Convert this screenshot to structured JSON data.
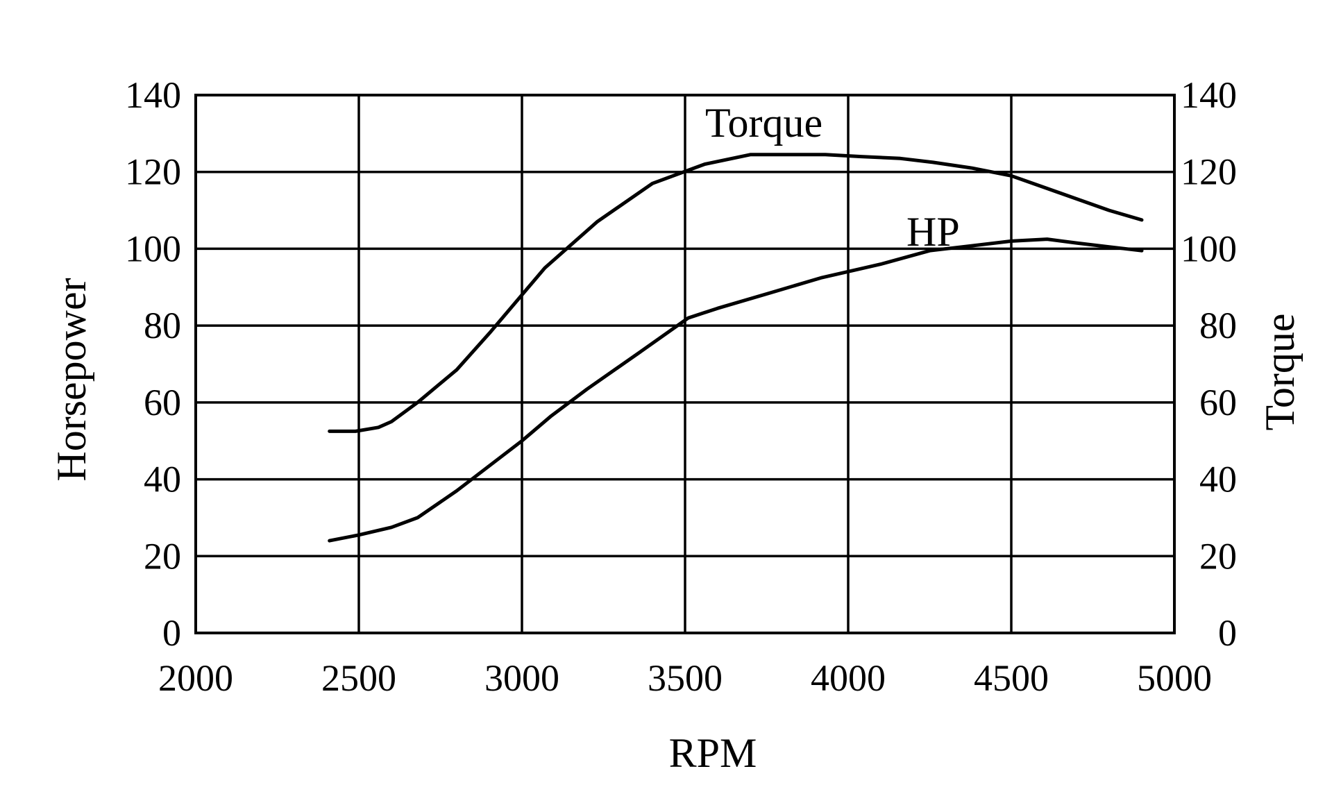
{
  "chart_data": {
    "type": "line",
    "title": "",
    "xlabel": "RPM",
    "ylabel_left": "Horsepower",
    "ylabel_right": "Torque",
    "xlim": [
      2000,
      5000
    ],
    "ylim_left": [
      0,
      140
    ],
    "ylim_right": [
      0,
      140
    ],
    "x_ticks": [
      2000,
      2500,
      3000,
      3500,
      4000,
      4500,
      5000
    ],
    "y_ticks_left": [
      0,
      20,
      40,
      60,
      80,
      100,
      120,
      140
    ],
    "y_ticks_right": [
      0,
      20,
      40,
      60,
      80,
      100,
      120,
      140
    ],
    "grid": true,
    "legend": "none",
    "line_color": "#000000",
    "series": [
      {
        "name": "Torque",
        "axis": "right",
        "x": [
          2410,
          2490,
          2560,
          2600,
          2680,
          2800,
          2900,
          3000,
          3070,
          3230,
          3400,
          3560,
          3700,
          3830,
          3930,
          4040,
          4160,
          4260,
          4380,
          4500,
          4600,
          4700,
          4800,
          4900
        ],
        "y": [
          52.5,
          52.5,
          53.5,
          55,
          60,
          68.5,
          78,
          88,
          95,
          107,
          117,
          122,
          124.5,
          124.5,
          124.5,
          124,
          123.5,
          122.5,
          121,
          119,
          116,
          113,
          110,
          107.5
        ]
      },
      {
        "name": "HP",
        "axis": "left",
        "x": [
          2410,
          2500,
          2600,
          2680,
          2800,
          2900,
          3000,
          3090,
          3200,
          3360,
          3510,
          3600,
          3760,
          3920,
          4100,
          4250,
          4350,
          4500,
          4610,
          4700,
          4800,
          4900
        ],
        "y": [
          24,
          25.5,
          27.5,
          30,
          37,
          43.5,
          50,
          56.5,
          63.5,
          73,
          82,
          84.5,
          88.5,
          92.5,
          96,
          99.5,
          100.5,
          102,
          102.5,
          101.5,
          100.5,
          99.5
        ]
      }
    ]
  }
}
